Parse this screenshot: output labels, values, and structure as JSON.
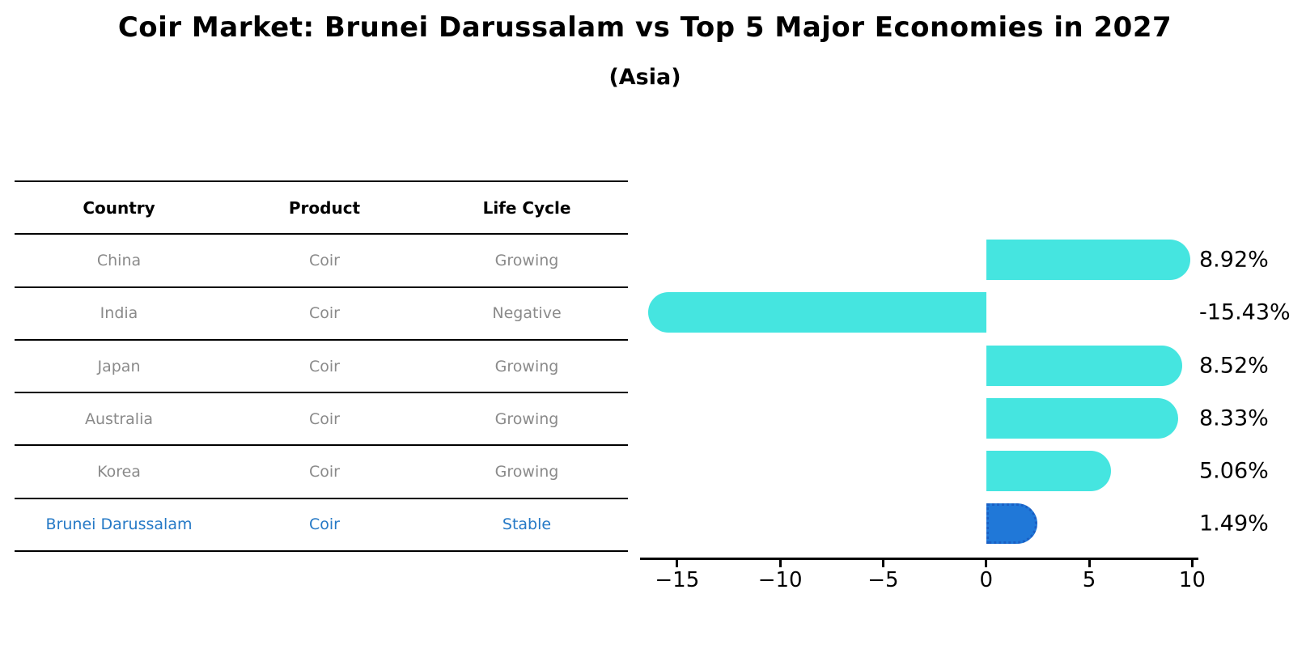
{
  "header": {
    "title": "Coir Market: Brunei Darussalam vs Top 5 Major Economies in 2027",
    "subtitle": "(Asia)"
  },
  "table": {
    "columns": [
      "Country",
      "Product",
      "Life Cycle"
    ],
    "rows": [
      {
        "country": "China",
        "product": "Coir",
        "life_cycle": "Growing",
        "highlight": false
      },
      {
        "country": "India",
        "product": "Coir",
        "life_cycle": "Negative",
        "highlight": false
      },
      {
        "country": "Japan",
        "product": "Coir",
        "life_cycle": "Growing",
        "highlight": false
      },
      {
        "country": "Australia",
        "product": "Coir",
        "life_cycle": "Growing",
        "highlight": false
      },
      {
        "country": "Korea",
        "product": "Coir",
        "life_cycle": "Growing",
        "highlight": false
      },
      {
        "country": "Brunei Darussalam",
        "product": "Coir",
        "life_cycle": "Stable",
        "highlight": true
      }
    ]
  },
  "chart_data": {
    "type": "bar",
    "orientation": "horizontal",
    "title": "Coir Market: Brunei Darussalam vs Top 5 Major Economies in 2027 (Asia)",
    "categories": [
      "China",
      "India",
      "Japan",
      "Australia",
      "Korea",
      "Brunei Darussalam"
    ],
    "values": [
      8.92,
      -15.43,
      8.52,
      8.33,
      5.06,
      1.49
    ],
    "value_labels": [
      "8.92%",
      "-15.43%",
      "8.52%",
      "8.33%",
      "5.06%",
      "1.49%"
    ],
    "unit": "%",
    "xlim": [
      -16.8,
      10.3
    ],
    "xticks": [
      -15,
      -10,
      -5,
      0,
      5,
      10
    ],
    "xtick_labels": [
      "−15",
      "−10",
      "−5",
      "0",
      "5",
      "10"
    ],
    "grid": false,
    "legend": null,
    "highlight_index": 5,
    "bar_color": "#45e5e0",
    "highlight_color": "#2078d8",
    "highlight_border_color": "#1a5fc4",
    "highlight_text_color": "#2579c6"
  }
}
